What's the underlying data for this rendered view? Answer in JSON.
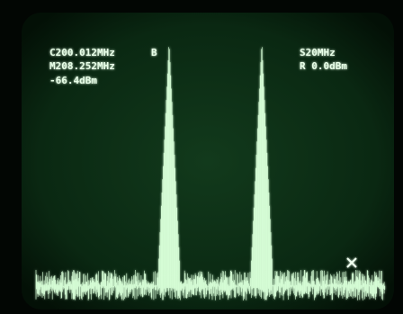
{
  "screen": {
    "center_freq": "C200.012MHz",
    "marker_freq": "M208.252MHz",
    "marker_level": "-66.4dBm",
    "marker_label": "B",
    "span": "S20MHz",
    "ref_level": "R 0.0dBm"
  }
}
